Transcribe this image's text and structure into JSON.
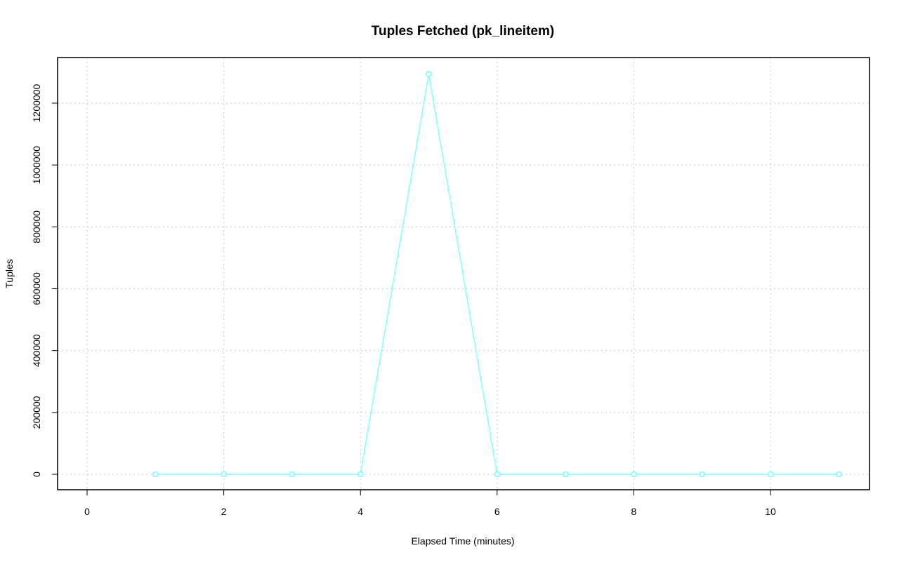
{
  "chart_data": {
    "type": "line",
    "title": "Tuples Fetched (pk_lineitem)",
    "xlabel": "Elapsed Time (minutes)",
    "ylabel": "Tuples",
    "xlim": [
      -0.4,
      11.4
    ],
    "ylim": [
      -50000,
      1345000
    ],
    "xticks": [
      0,
      2,
      4,
      6,
      8,
      10
    ],
    "yticks": [
      0,
      200000,
      400000,
      600000,
      800000,
      1000000,
      1200000
    ],
    "grid": true,
    "series": [
      {
        "color": "#7fffff",
        "x": [
          1,
          2,
          3,
          4,
          5,
          6,
          7,
          8,
          9,
          10,
          11
        ],
        "y": [
          0,
          0,
          0,
          0,
          1294000,
          0,
          0,
          0,
          0,
          0,
          0
        ]
      }
    ]
  }
}
